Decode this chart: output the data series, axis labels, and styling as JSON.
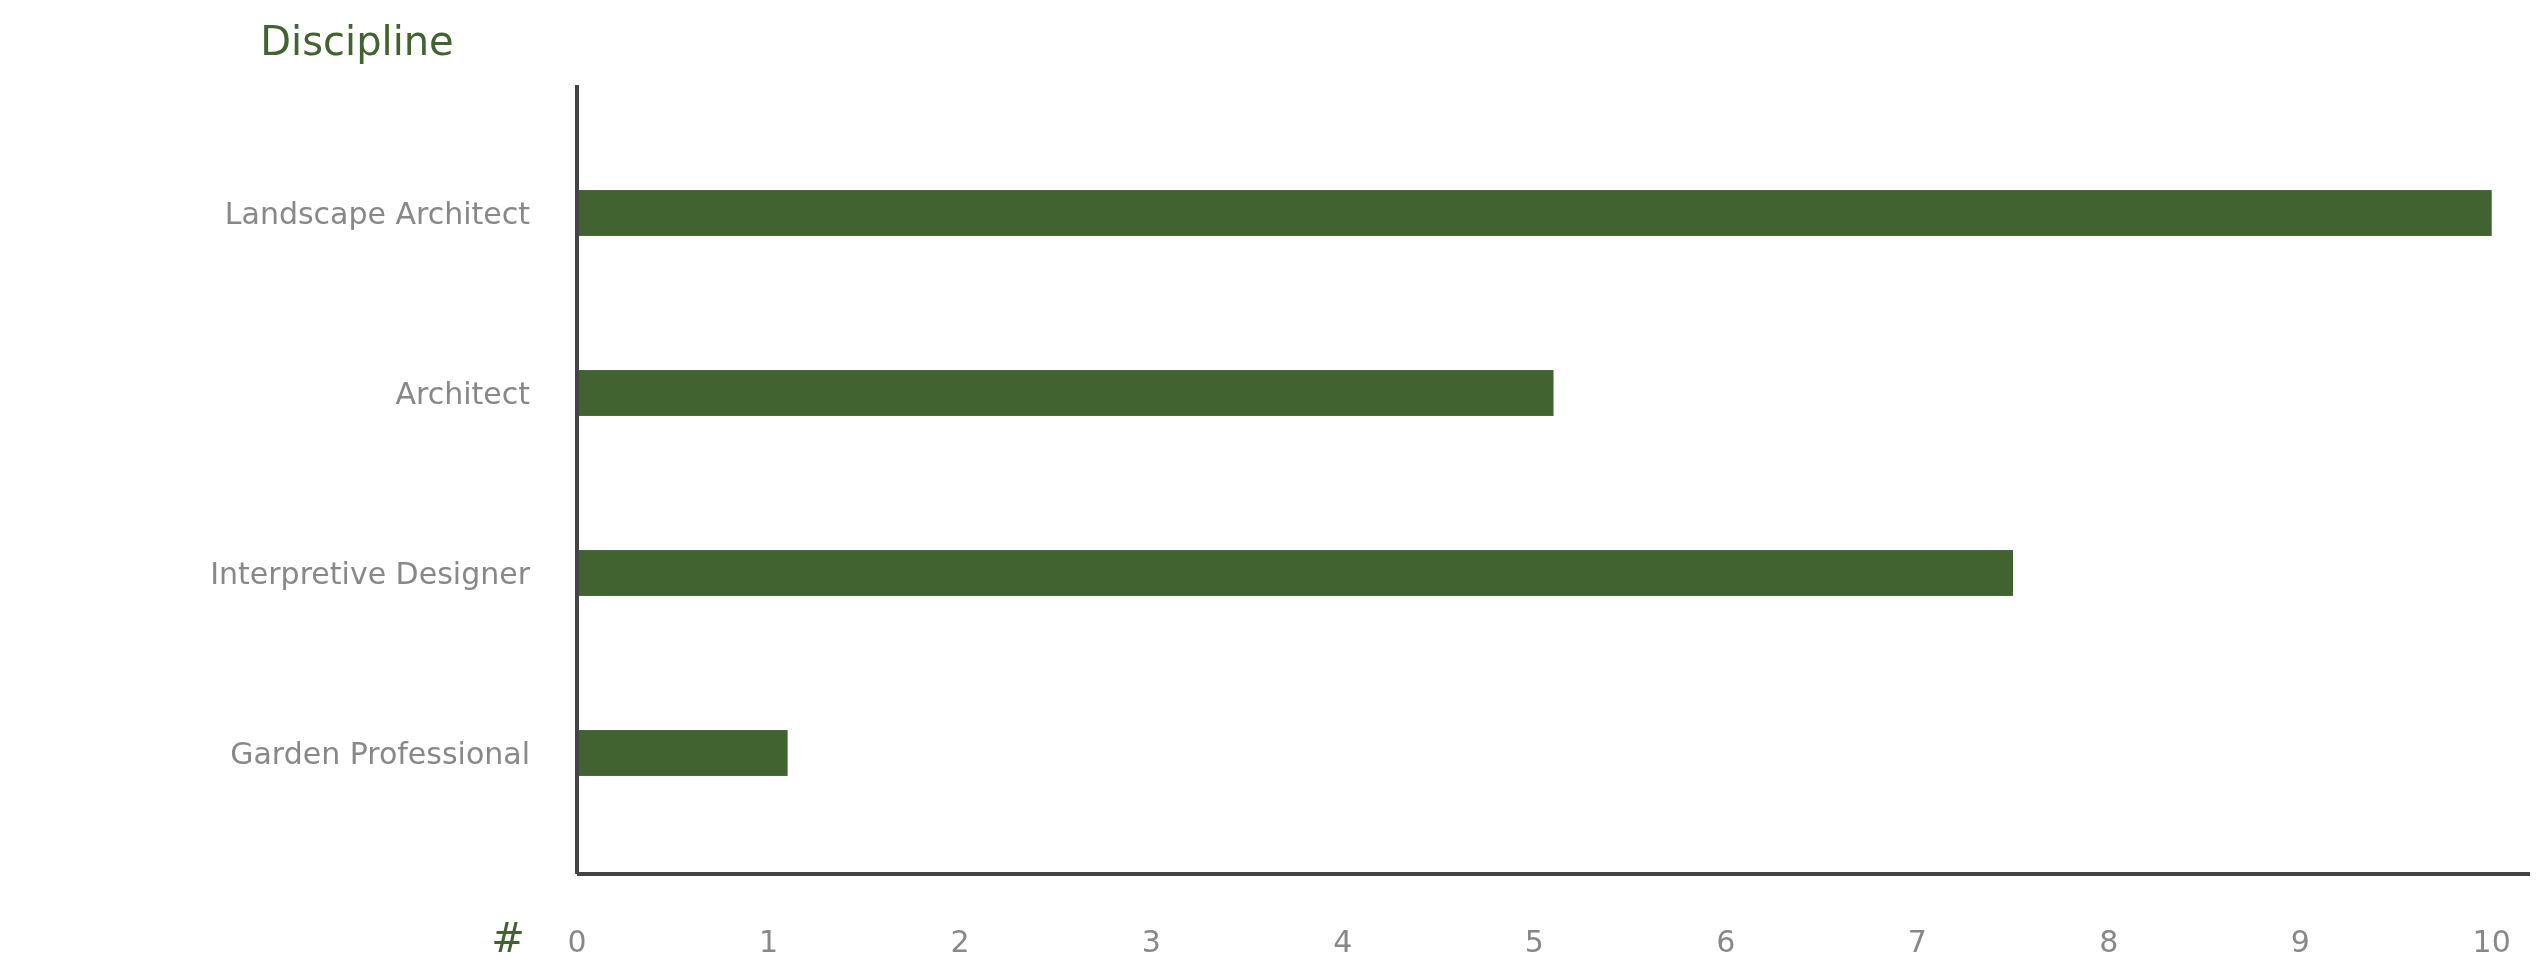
{
  "chart_data": {
    "type": "bar",
    "orientation": "horizontal",
    "ylabel": "Discipline",
    "xlabel": "#",
    "categories": [
      "Landscape Architect",
      "Architect",
      "Interpretive Designer",
      "Garden Professional"
    ],
    "values": [
      10,
      5.1,
      7.5,
      1.1
    ],
    "color": "#40632f",
    "xlim": [
      0,
      10.2
    ],
    "xticks": [
      0,
      1,
      2,
      3,
      4,
      5,
      6,
      7,
      8,
      9,
      10
    ]
  }
}
